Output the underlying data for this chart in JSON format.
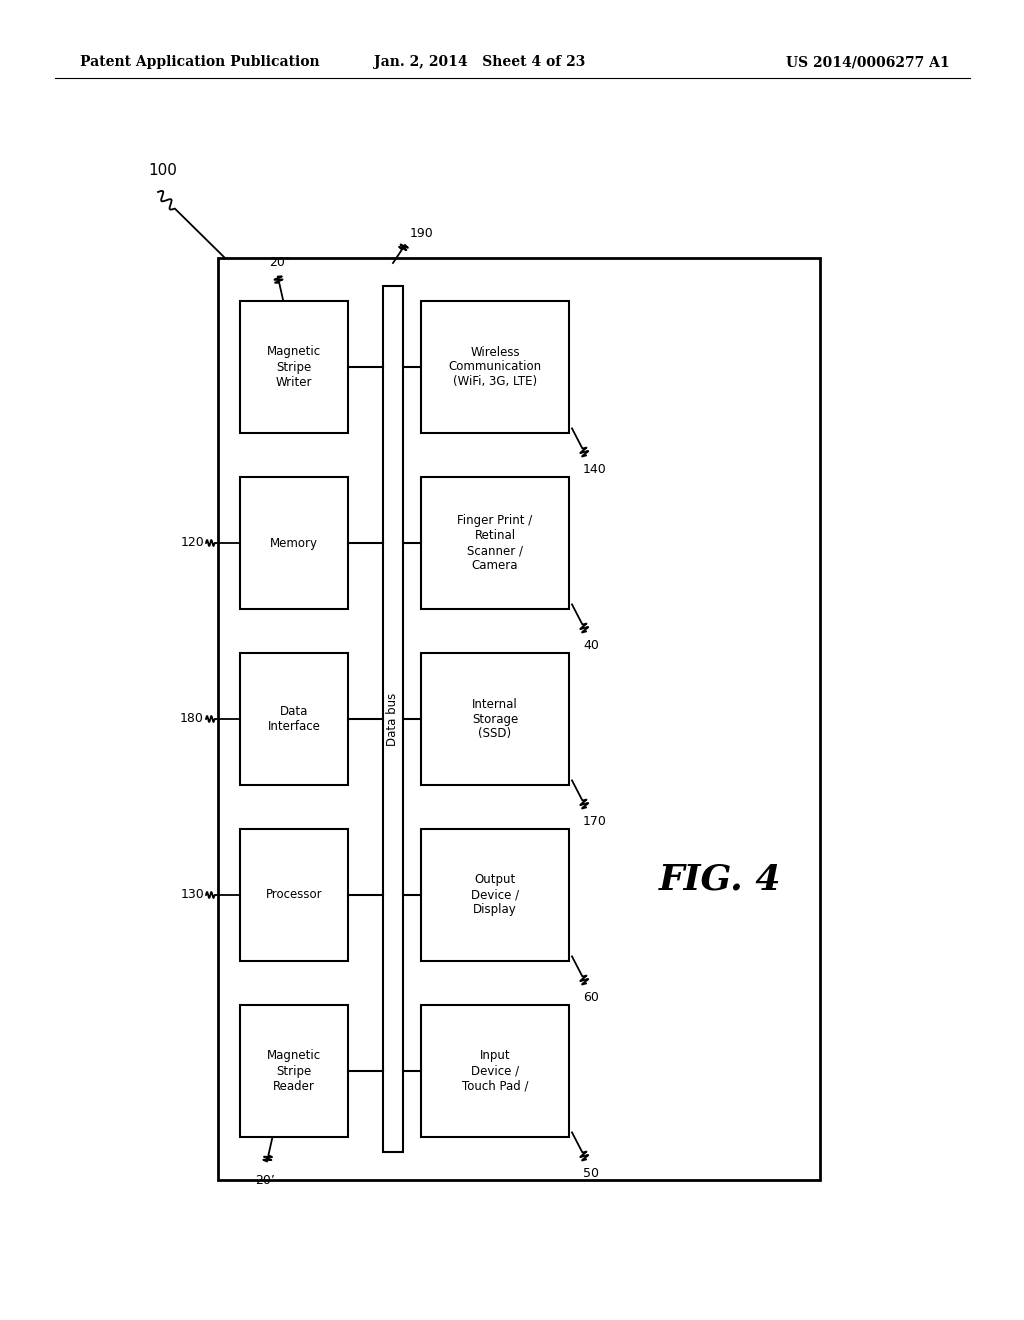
{
  "bg_color": "#ffffff",
  "header_left": "Patent Application Publication",
  "header_mid": "Jan. 2, 2014   Sheet 4 of 23",
  "header_right": "US 2014/0006277 A1",
  "fig_label": "FIG. 4",
  "ref_100": "100",
  "left_boxes": [
    {
      "label": "Magnetic\nStripe\nWriter",
      "ref": "20″"
    },
    {
      "label": "Memory",
      "ref": "120"
    },
    {
      "label": "Data\nInterface",
      "ref": "180"
    },
    {
      "label": "Processor",
      "ref": "130"
    },
    {
      "label": "Magnetic\nStripe\nReader",
      "ref": "20’"
    }
  ],
  "right_boxes": [
    {
      "label": "Wireless\nCommunication\n(WiFi, 3G, LTE)",
      "ref": "140"
    },
    {
      "label": "Finger Print /\nRetinal\nScanner /\nCamera",
      "ref": "40"
    },
    {
      "label": "Internal\nStorage\n(SSD)",
      "ref": "170"
    },
    {
      "label": "Output\nDevice /\nDisplay",
      "ref": "60"
    },
    {
      "label": "Input\nDevice /\nTouch Pad /",
      "ref": "50"
    }
  ],
  "databus_label": "Data bus",
  "databus_ref": "190",
  "font_size_box": 8.5,
  "font_size_ref": 9,
  "font_size_header": 10,
  "font_size_fig": 26
}
